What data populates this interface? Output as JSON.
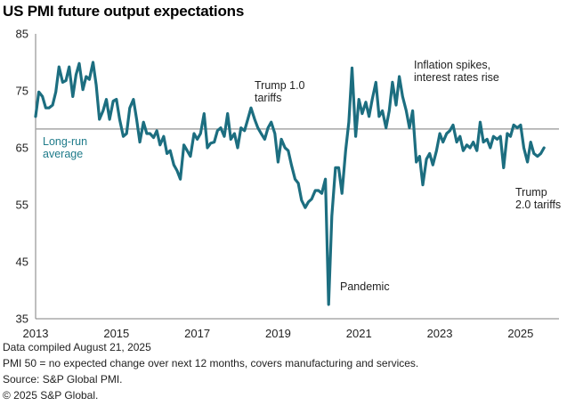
{
  "title": "US PMI future output expectations",
  "footer": {
    "line1": "Data compiled August 21, 2025",
    "line2": "PMI 50 =  no expected change over next 12 months, covers manufacturing and services.",
    "line3": "Source: S&P Global PMI.",
    "line4": "© 2025 S&P Global."
  },
  "colors": {
    "series": "#1c6e80",
    "reference": "#a6a6a6",
    "reference_label": "#1f7b8a",
    "axis": "#7f7f7f"
  },
  "chart_data": {
    "type": "line",
    "title": "US PMI future output expectations",
    "xlabel": "",
    "ylabel": "",
    "ylim": [
      35,
      85
    ],
    "xlim": [
      2013,
      2025.95
    ],
    "y_ticks": [
      "35",
      "45",
      "55",
      "65",
      "75",
      "85"
    ],
    "x_ticks": [
      "2013",
      "2015",
      "2017",
      "2019",
      "2021",
      "2023",
      "2025"
    ],
    "grid": false,
    "reference_line": {
      "value": 68.3,
      "label": [
        "Long-run",
        "average"
      ]
    },
    "annotations": [
      {
        "lines": [
          "Trump 1.0",
          "tariffs"
        ]
      },
      {
        "lines": [
          "Inflation spikes,",
          "interest rates rise"
        ]
      },
      {
        "lines": [
          "Pandemic"
        ]
      },
      {
        "lines": [
          "Trump",
          "2.0 tariffs"
        ]
      }
    ],
    "series": [
      {
        "x": [
          2013.0,
          2013.08,
          2013.17,
          2013.25,
          2013.33,
          2013.42,
          2013.5,
          2013.58,
          2013.67,
          2013.75,
          2013.83,
          2013.92,
          2014.0,
          2014.08,
          2014.17,
          2014.25,
          2014.33,
          2014.42,
          2014.5,
          2014.58,
          2014.67,
          2014.75,
          2014.83,
          2014.92,
          2015.0,
          2015.08,
          2015.17,
          2015.25,
          2015.33,
          2015.42,
          2015.5,
          2015.58,
          2015.67,
          2015.75,
          2015.83,
          2015.92,
          2016.0,
          2016.08,
          2016.17,
          2016.25,
          2016.33,
          2016.42,
          2016.5,
          2016.58,
          2016.67,
          2016.75,
          2016.83,
          2016.92,
          2017.0,
          2017.08,
          2017.17,
          2017.25,
          2017.33,
          2017.42,
          2017.5,
          2017.58,
          2017.67,
          2017.75,
          2017.83,
          2017.92,
          2018.0,
          2018.08,
          2018.17,
          2018.25,
          2018.33,
          2018.42,
          2018.5,
          2018.58,
          2018.67,
          2018.75,
          2018.83,
          2018.92,
          2019.0,
          2019.08,
          2019.17,
          2019.25,
          2019.33,
          2019.42,
          2019.5,
          2019.58,
          2019.67,
          2019.75,
          2019.83,
          2019.92,
          2020.0,
          2020.08,
          2020.17,
          2020.25,
          2020.33,
          2020.42,
          2020.5,
          2020.58,
          2020.67,
          2020.75,
          2020.83,
          2020.92,
          2021.0,
          2021.08,
          2021.17,
          2021.25,
          2021.33,
          2021.42,
          2021.5,
          2021.58,
          2021.67,
          2021.75,
          2021.83,
          2021.92,
          2022.0,
          2022.08,
          2022.17,
          2022.25,
          2022.33,
          2022.42,
          2022.5,
          2022.58,
          2022.67,
          2022.75,
          2022.83,
          2022.92,
          2023.0,
          2023.08,
          2023.17,
          2023.25,
          2023.33,
          2023.42,
          2023.5,
          2023.58,
          2023.67,
          2023.75,
          2023.83,
          2023.92,
          2024.0,
          2024.08,
          2024.17,
          2024.25,
          2024.33,
          2024.42,
          2024.5,
          2024.58,
          2024.67,
          2024.75,
          2024.83,
          2024.92,
          2025.0,
          2025.08,
          2025.17,
          2025.25,
          2025.33,
          2025.42,
          2025.5,
          2025.58
        ],
        "y": [
          70.5,
          74.8,
          74.0,
          72.0,
          72.0,
          72.5,
          74.8,
          79.2,
          76.5,
          76.8,
          79.2,
          74.0,
          77.8,
          79.8,
          75.2,
          77.5,
          77.0,
          80.0,
          76.0,
          70.0,
          71.5,
          73.5,
          70.0,
          73.2,
          73.5,
          70.0,
          67.0,
          67.5,
          72.0,
          73.5,
          70.0,
          66.0,
          69.5,
          67.5,
          67.5,
          66.8,
          68.0,
          65.5,
          67.0,
          64.0,
          64.5,
          62.0,
          61.0,
          59.5,
          65.5,
          64.5,
          63.5,
          67.5,
          66.5,
          67.5,
          71.0,
          65.0,
          65.8,
          66.0,
          68.0,
          68.5,
          67.0,
          71.0,
          66.5,
          67.5,
          65.0,
          68.5,
          68.0,
          70.0,
          72.0,
          70.0,
          68.5,
          67.5,
          66.5,
          68.5,
          69.5,
          67.5,
          62.5,
          66.5,
          65.0,
          64.5,
          62.0,
          59.5,
          58.8,
          55.8,
          54.5,
          55.5,
          56.0,
          57.5,
          57.5,
          57.0,
          59.5,
          37.5,
          53.0,
          61.5,
          61.5,
          57.0,
          64.5,
          69.5,
          79.0,
          67.0,
          73.5,
          71.0,
          73.0,
          70.5,
          73.5,
          76.5,
          70.5,
          71.5,
          68.5,
          71.5,
          76.5,
          72.5,
          77.5,
          74.0,
          71.5,
          68.5,
          71.5,
          62.5,
          63.5,
          58.5,
          63.0,
          64.0,
          62.0,
          64.5,
          67.5,
          66.0,
          67.5,
          68.0,
          69.0,
          66.0,
          67.0,
          64.5,
          65.5,
          65.0,
          66.0,
          64.5,
          69.5,
          66.0,
          66.5,
          65.0,
          67.0,
          66.5,
          67.0,
          61.5,
          67.5,
          67.0,
          69.0,
          68.5,
          69.0,
          65.0,
          62.5,
          66.0,
          64.0,
          63.5,
          64.0,
          65.0
        ]
      }
    ]
  }
}
